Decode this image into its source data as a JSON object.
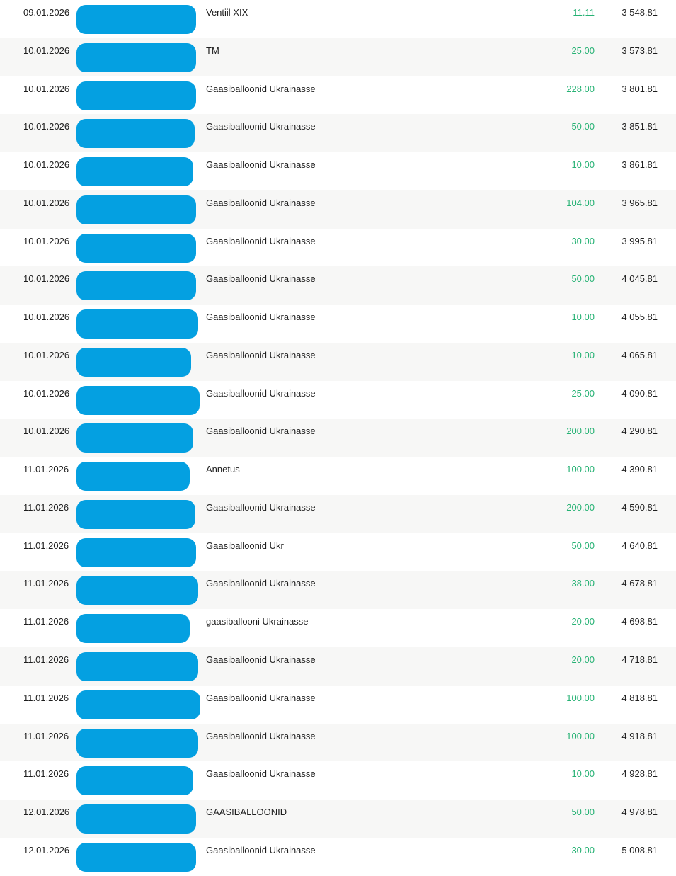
{
  "colors": {
    "redaction_blue": "#04a0e1",
    "amount_green": "#26b274",
    "alt_row_bg": "#f7f7f6",
    "text_dark": "#1e1e1e"
  },
  "table": {
    "column_semantics": [
      "date",
      "payer-redacted",
      "description",
      "amount",
      "balance"
    ],
    "rows": [
      {
        "date": "09.01.2026",
        "description": "Ventiil XIX",
        "amount": "11.11",
        "balance": "3 548.81",
        "blob_width": 169
      },
      {
        "date": "10.01.2026",
        "description": "TM",
        "amount": "25.00",
        "balance": "3 573.81",
        "blob_width": 169
      },
      {
        "date": "10.01.2026",
        "description": "Gaasiballoonid Ukrainasse",
        "amount": "228.00",
        "balance": "3 801.81",
        "blob_width": 169
      },
      {
        "date": "10.01.2026",
        "description": "Gaasiballoonid Ukrainasse",
        "amount": "50.00",
        "balance": "3 851.81",
        "blob_width": 167
      },
      {
        "date": "10.01.2026",
        "description": "Gaasiballoonid Ukrainasse",
        "amount": "10.00",
        "balance": "3 861.81",
        "blob_width": 165
      },
      {
        "date": "10.01.2026",
        "description": "Gaasiballoonid Ukrainasse",
        "amount": "104.00",
        "balance": "3 965.81",
        "blob_width": 169
      },
      {
        "date": "10.01.2026",
        "description": "Gaasiballoonid Ukrainasse",
        "amount": "30.00",
        "balance": "3 995.81",
        "blob_width": 169
      },
      {
        "date": "10.01.2026",
        "description": "Gaasiballoonid Ukrainasse",
        "amount": "50.00",
        "balance": "4 045.81",
        "blob_width": 169
      },
      {
        "date": "10.01.2026",
        "description": "Gaasiballoonid Ukrainasse",
        "amount": "10.00",
        "balance": "4 055.81",
        "blob_width": 172
      },
      {
        "date": "10.01.2026",
        "description": "Gaasiballoonid Ukrainasse",
        "amount": "10.00",
        "balance": "4 065.81",
        "blob_width": 162
      },
      {
        "date": "10.01.2026",
        "description": "Gaasiballoonid Ukrainasse",
        "amount": "25.00",
        "balance": "4 090.81",
        "blob_width": 174
      },
      {
        "date": "10.01.2026",
        "description": "Gaasiballoonid Ukrainasse",
        "amount": "200.00",
        "balance": "4 290.81",
        "blob_width": 165
      },
      {
        "date": "11.01.2026",
        "description": "Annetus",
        "amount": "100.00",
        "balance": "4 390.81",
        "blob_width": 160
      },
      {
        "date": "11.01.2026",
        "description": "Gaasiballoonid Ukrainasse",
        "amount": "200.00",
        "balance": "4 590.81",
        "blob_width": 168
      },
      {
        "date": "11.01.2026",
        "description": "Gaasiballoonid Ukr",
        "amount": "50.00",
        "balance": "4 640.81",
        "blob_width": 169
      },
      {
        "date": "11.01.2026",
        "description": "Gaasiballoonid Ukrainasse",
        "amount": "38.00",
        "balance": "4 678.81",
        "blob_width": 172
      },
      {
        "date": "11.01.2026",
        "description": "gaasiballooni Ukrainasse",
        "amount": "20.00",
        "balance": "4 698.81",
        "blob_width": 160
      },
      {
        "date": "11.01.2026",
        "description": "Gaasiballoonid Ukrainasse",
        "amount": "20.00",
        "balance": "4 718.81",
        "blob_width": 172
      },
      {
        "date": "11.01.2026",
        "description": "Gaasiballoonid Ukrainasse",
        "amount": "100.00",
        "balance": "4 818.81",
        "blob_width": 175
      },
      {
        "date": "11.01.2026",
        "description": "Gaasiballoonid Ukrainasse",
        "amount": "100.00",
        "balance": "4 918.81",
        "blob_width": 172
      },
      {
        "date": "11.01.2026",
        "description": "Gaasiballoonid Ukrainasse",
        "amount": "10.00",
        "balance": "4 928.81",
        "blob_width": 165
      },
      {
        "date": "12.01.2026",
        "description": "GAASIBALLOONID",
        "amount": "50.00",
        "balance": "4 978.81",
        "blob_width": 169
      },
      {
        "date": "12.01.2026",
        "description": "Gaasiballoonid Ukrainasse",
        "amount": "30.00",
        "balance": "5 008.81",
        "blob_width": 169
      }
    ]
  }
}
